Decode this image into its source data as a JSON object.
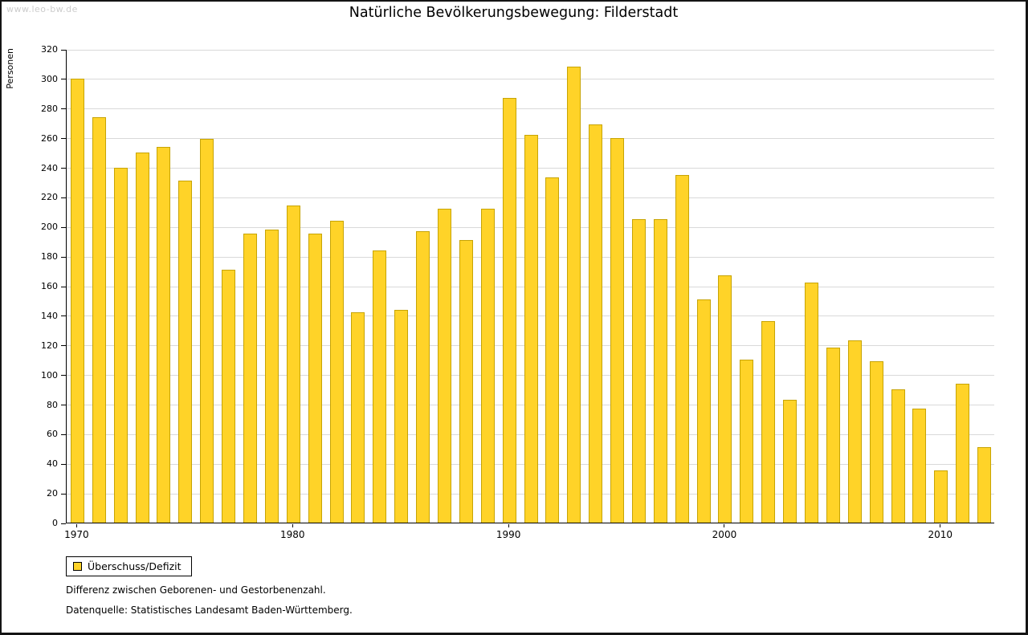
{
  "watermark": "www.leo-bw.de",
  "notes": [
    "Differenz zwischen Geborenen- und Gestorbenenzahl.",
    "Datenquelle: Statistisches Landesamt Baden-Württemberg."
  ],
  "chart_data": {
    "type": "bar",
    "title": "Natürliche Bevölkerungsbewegung: Filderstadt",
    "ylabel": "Personen",
    "xlabel": "",
    "legend": "Überschuss/Defizit",
    "legend_position": "bottom-left",
    "grid": "horizontal",
    "start_year": 1970,
    "categories": [
      1970,
      1971,
      1972,
      1973,
      1974,
      1975,
      1976,
      1977,
      1978,
      1979,
      1980,
      1981,
      1982,
      1983,
      1984,
      1985,
      1986,
      1987,
      1988,
      1989,
      1990,
      1991,
      1992,
      1993,
      1994,
      1995,
      1996,
      1997,
      1998,
      1999,
      2000,
      2001,
      2002,
      2003,
      2004,
      2005,
      2006,
      2007,
      2008,
      2009,
      2010,
      2011,
      2012
    ],
    "values": [
      300,
      274,
      240,
      250,
      254,
      231,
      259,
      171,
      195,
      198,
      214,
      195,
      204,
      142,
      184,
      144,
      197,
      212,
      191,
      212,
      287,
      262,
      233,
      308,
      269,
      260,
      205,
      205,
      235,
      151,
      167,
      110,
      136,
      83,
      162,
      118,
      123,
      109,
      90,
      77,
      35,
      94,
      51
    ],
    "ylim": [
      0,
      320
    ],
    "ytick_step": 20,
    "x_tick_labels": [
      1970,
      1980,
      1990,
      2000,
      2010
    ],
    "colors": {
      "bar_fill": "#ffd328",
      "bar_border": "#c7a404",
      "grid": "#d9d9d9",
      "axis": "#000000",
      "watermark": "#cccccc"
    }
  }
}
